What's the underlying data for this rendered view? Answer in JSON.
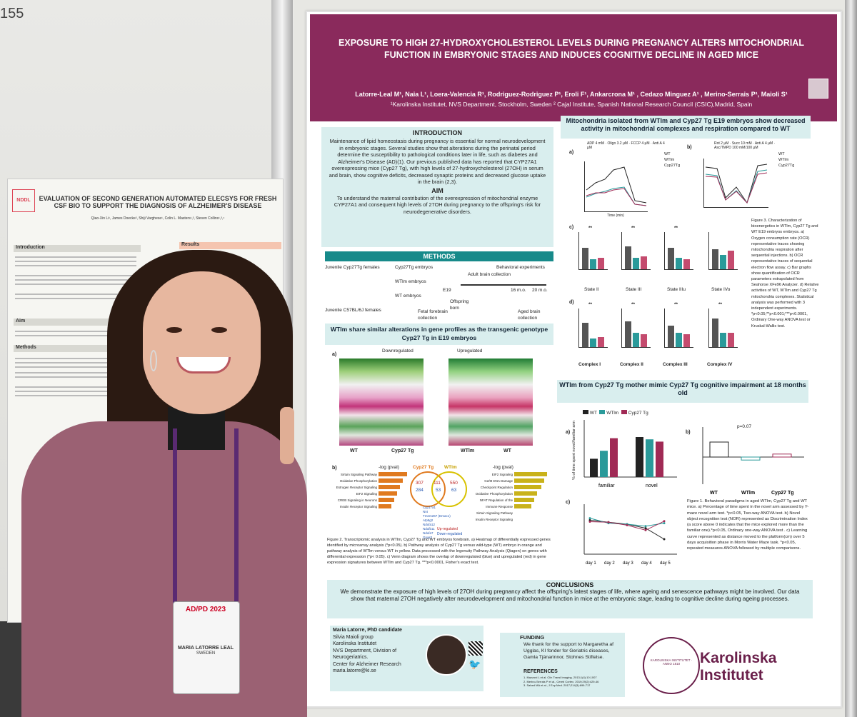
{
  "scene": {
    "board_number": "155",
    "left_poster": {
      "logo": "NDDL",
      "title": "EVALUATION OF SECOND GENERATION AUTOMATED ELECSYS FOR FRESH CSF BIO TO SUPPORT THE DIAGNOSIS OF ALZHEIMER'S DISEASE",
      "authors": "Qiao-Xin Li¹, James Doecke², Shiji Varghese¹, Colin L. Masters¹,³, Steven Collins¹,³,⁴",
      "sections": [
        "Introduction",
        "Aim",
        "Methods"
      ],
      "results_header": "Results"
    },
    "badge": {
      "logo": "AD/PD 2023",
      "name": "MARIA LATORRE LEAL",
      "country": "SWEDEN"
    }
  },
  "poster": {
    "title": "EXPOSURE TO HIGH 27-HYDROXYCHOLESTEROL LEVELS DURING PREGNANCY ALTERS MITOCHONDRIAL FUNCTION IN EMBRYONIC STAGES AND INDUCES COGNITIVE DECLINE IN AGED MICE",
    "authors": "Latorre-Leal M¹, Naia L¹, Loera-Valencia R¹, Rodriguez-Rodriguez P¹, Eroli F¹, Ankarcrona M¹ , Cedazo Minguez A¹ , Merino-Serrais P¹, Maioli S¹",
    "affiliations": "¹Karolinska Institutet, NVS Department, Stockholm, Sweden ² Cajal Institute, Spanish National Research Council (CSIC),Madrid, Spain",
    "intro": {
      "heading": "INTRODUCTION",
      "text": "Maintenance of lipid homeostasis during pregnancy is essential for normal neurodevelopment in embryonic stages. Several studies show that alterations during the perinatal period determine the susceptibility to pathological conditions later in life, such as diabetes and Alzheimer's Disease (AD)(1). Our previous published data has reported that CYP27A1 overexpressing mice (Cyp27 Tg), with high levels of 27-hydroxycholesterol (27OH) in serum and brain, show cognitive deficits, decreased synaptic proteins and decreased glucose uptake in the brain (2,3).",
      "aim_heading": "AIM",
      "aim_text": "To understand the maternal contribution of the overexpression of mitochondrial enzyme CYP27A1 and consequent high levels of 27OH during pregnancy to the offspring's risk for neurodegenerative disorders."
    },
    "methods": {
      "heading": "METHODS",
      "labels": [
        "Juvenile Cyp27Tg females",
        "Cyp27Tg embryos",
        "WTlm embryos",
        "WT embryos",
        "Juvenile C57BL/6J females",
        "Fetal forebrain collection",
        "Offspring born",
        "Adult brain collection",
        "Behavioral experiments",
        "Aged brain collection"
      ],
      "timeline": [
        "E19",
        "16 m.o.",
        "20 m.o."
      ]
    },
    "transcriptomics": {
      "heading": "WTlm share similar alterations in gene profiles as the transgenic genotype Cyp27 Tg in E19 embryos",
      "legend": [
        "Downregulated",
        "Upregulated"
      ],
      "heatmap_groups": [
        "WT",
        "Cyp27 Tg",
        "WTlm",
        "WT"
      ],
      "venn": {
        "left": "Cyp27 Tg",
        "right": "WTlm",
        "left_up": "307",
        "left_down": "284",
        "mid_up": "111",
        "mid_down": "53",
        "right_up": "550",
        "right_down": "63"
      },
      "venn_genes": [
        "Cyp17a1",
        "Nnt",
        "Tmem267 (Dmac1)",
        "Atp5g2",
        "Ndufa12",
        "Ndufb11",
        "Ndufa7",
        "Gnas2"
      ],
      "venn_legend": [
        "Up-regulated",
        "Down-regulated"
      ],
      "pathway_axis": "-log (pval)",
      "pathways_left": [
        "Sirtuin Signaling Pathway",
        "Oxidative Phosphorylation",
        "Estrogen Receptor Signaling",
        "EIF2 Signaling",
        "CREB Signaling in Neurons",
        "Insulin Receptor Signaling"
      ],
      "pathways_right": [
        "EIF2 Signaling",
        "G2/M DNA Damage Checkpoint Regulation",
        "Oxidative Phosphorylation",
        "NFAT Regulation of the Immune Response",
        "Sirtuin Signaling Pathway",
        "Insulin Receptor Signaling"
      ],
      "caption": "Figure 2. Transcriptomic analysis in WTlm, Cyp27 Tg and WT embryos forebrain. a) Heatmap of differentially expressed genes identified by microarray analysis (*p<0.05). b) Pathway analysis of Cyp27 Tg versus wild-type (WT) embryo in orange and pathway analysis of WTlm versus WT in yellow. Data processed with the Ingenuity Pathway Analysis (Qiagen) on genes with differential expression (*p< 0.05). c) Venn diagram shows the overlap of downregulated (blue) and upregulated (red) in gene expression signatures between WTlm and Cyp27 Tg. ***p<0.0001, Fisher's exact test."
    },
    "mito": {
      "heading": "Mitochondria isolated from WTlm and Cyp27 Tg E19 embryos show decreased activity in mitochondrial complexes and respiration compared to WT",
      "legend": [
        "WT",
        "WTlm",
        "Cyp27Tg"
      ],
      "trace_a_labels": [
        "ADP 4 mM",
        "Oligo 3.2 µM",
        "FCCP 4 µM",
        "Anti A 4 µM"
      ],
      "trace_b_labels": [
        "Rot 2 µM",
        "Succ 10 mM",
        "Anti A 4 µM",
        "Asc/TMPD 100 mM/100 µM"
      ],
      "states": [
        "State II",
        "State III",
        "State IIIu",
        "State IVo"
      ],
      "complexes": [
        "Complex I",
        "Complex II",
        "Complex III",
        "Complex IV"
      ],
      "yaxis": "OCR (pmol O₂/min/2.5 µg mito)",
      "xaxis": "Time (min)",
      "sig": "**",
      "caption": "Figure 3. Characterization of bioenergetics in WTlm, Cyp27 Tg and WT E19 embryos embryos. a) Oxygen consumption rate (OCR) representative traces showing mitochondria respiration after sequential injections. b) OCR representative traces of sequential electron flow assay. c) Bar graphs show quantification of OCR parameters extrapolated from Seahorse XFe96 Analyzer. d) Relative activities of WT, WTlm and Cyp27 Tg mitochondria complexes. Statistical analysis was performed with 3 independent experiments. *p<0.05;**p<0.001;***p<0.0001, Ordinary One-way ANOVA test or Kruskal-Wallis test."
    },
    "behavior": {
      "heading": "WTlm from Cyp27 Tg mother mimic Cyp27 Tg cognitive impairment at 18 months old",
      "legend": [
        "WT",
        "WTlm",
        "Cyp27 Tg"
      ],
      "panel_a_ylabel": "% of time spent novel/familiar arm",
      "panel_a_groups": [
        "familiar",
        "novel"
      ],
      "panel_b_ylabel": "Discrimination Index (N-F) / (N+F)",
      "panel_b_groups": [
        "WT",
        "WTlm",
        "Cyp27 Tg"
      ],
      "pvalue": "p=0.07",
      "panel_c_ylabel": "Distance moved to the platform (cm)",
      "panel_c_days": [
        "day 1",
        "day 2",
        "day 3",
        "day 4",
        "day 5"
      ],
      "caption": "Figure 1. Behavioral paradigms in aged WTlm, Cyp27 Tg and WT mice. a) Percentage of time spent in the novel arm assessed by Y-maze novel arm test. *p<0.05, Two-way ANOVA test. b) Novel object recognition test (NOR) represented as Discrimination Index (a score above 0 indicates that the mice explored more than the familiar one).*p<0.05, Ordinary one-way ANOVA test . c) Learning curve represented as distance moved to the platform(cm) over 5 days acquisition phase in Morris Water Maze task. *p<0.05, repeated measures ANOVA followed by multiple comparisons."
    },
    "chart_data": [
      {
        "type": "bar",
        "title": "",
        "ylabel": "% of time spent novel/familiar arm",
        "categories": [
          "familiar",
          "novel"
        ],
        "series": [
          {
            "name": "WT",
            "values": [
              16,
              35
            ]
          },
          {
            "name": "WTlm",
            "values": [
              23,
              33
            ]
          },
          {
            "name": "Cyp27 Tg",
            "values": [
              34,
              31
            ]
          }
        ],
        "ylim": [
          0,
          50
        ]
      },
      {
        "type": "bar",
        "title": "",
        "ylabel": "Discrimination Index (N-F) / (N+F)",
        "categories": [
          "WT",
          "WTlm",
          "Cyp27 Tg"
        ],
        "values": [
          0.25,
          -0.05,
          0.05
        ],
        "ylim": [
          -0.5,
          1.0
        ]
      },
      {
        "type": "line",
        "title": "",
        "ylabel": "Distance moved to the platform (cm)",
        "categories": [
          "day 1",
          "day 2",
          "day 3",
          "day 4",
          "day 5"
        ],
        "series": [
          {
            "name": "WT",
            "values": [
              680,
              640,
              600,
              520,
              300
            ]
          },
          {
            "name": "WTlm",
            "values": [
              720,
              620,
              600,
              560,
              620
            ]
          },
          {
            "name": "Cyp27 Tg",
            "values": [
              650,
              640,
              580,
              480,
              660
            ]
          }
        ],
        "ylim": [
          0,
          1000
        ]
      }
    ],
    "conclusions": {
      "heading": "CONCLUSIONS",
      "text": "We demonstrate the exposure of high levels of 27OH during pregnancy affect the offspring's latest stages of life, where ageing and senescence pathways might be involved. Our data show that maternal 27OH negatively alter neurodevelopment and mitochondrial function in mice at the embryonic stage, leading to cognitive decline during ageing processes."
    },
    "contact": {
      "lines": [
        "Maria Latorre, PhD candidate",
        "Silvia Maioli group",
        "Karolinska Institutet",
        "NVS Department, Division of Neurogeriatrics.",
        "Center for Alzheimer Research",
        "maria.latorre@ki.se"
      ]
    },
    "funding": {
      "heading": "FUNDING",
      "text": "We thank for the support to Margaretha af Ugglas, KI fonder for Geriatric diseases, Gamla Tjänarinnor, Stohnes Stiftelse."
    },
    "references": {
      "heading": "REFERENCES",
      "items": [
        "1. Mazzoni L et al. Clin Transl Imaging. 2013;1(4):10.1007",
        "2. Merino-Serrais P et al., Cereb Cortex. 2019;29(2):429-46",
        "3. Sahed MA et al., J Exp Med. 2017;214(3):699-717"
      ]
    },
    "logo": {
      "line1": "Karolinska",
      "line2": "Institutet",
      "seal": "KAROLINSKA INSTITUTET · ANNO 1810"
    },
    "colors": {
      "banner": "#8a2a5c",
      "teal": "#178a8a",
      "panel": "#d9eeee",
      "wt": "#222222",
      "wtlm": "#2a9a9a",
      "cyp": "#a02a55"
    }
  }
}
